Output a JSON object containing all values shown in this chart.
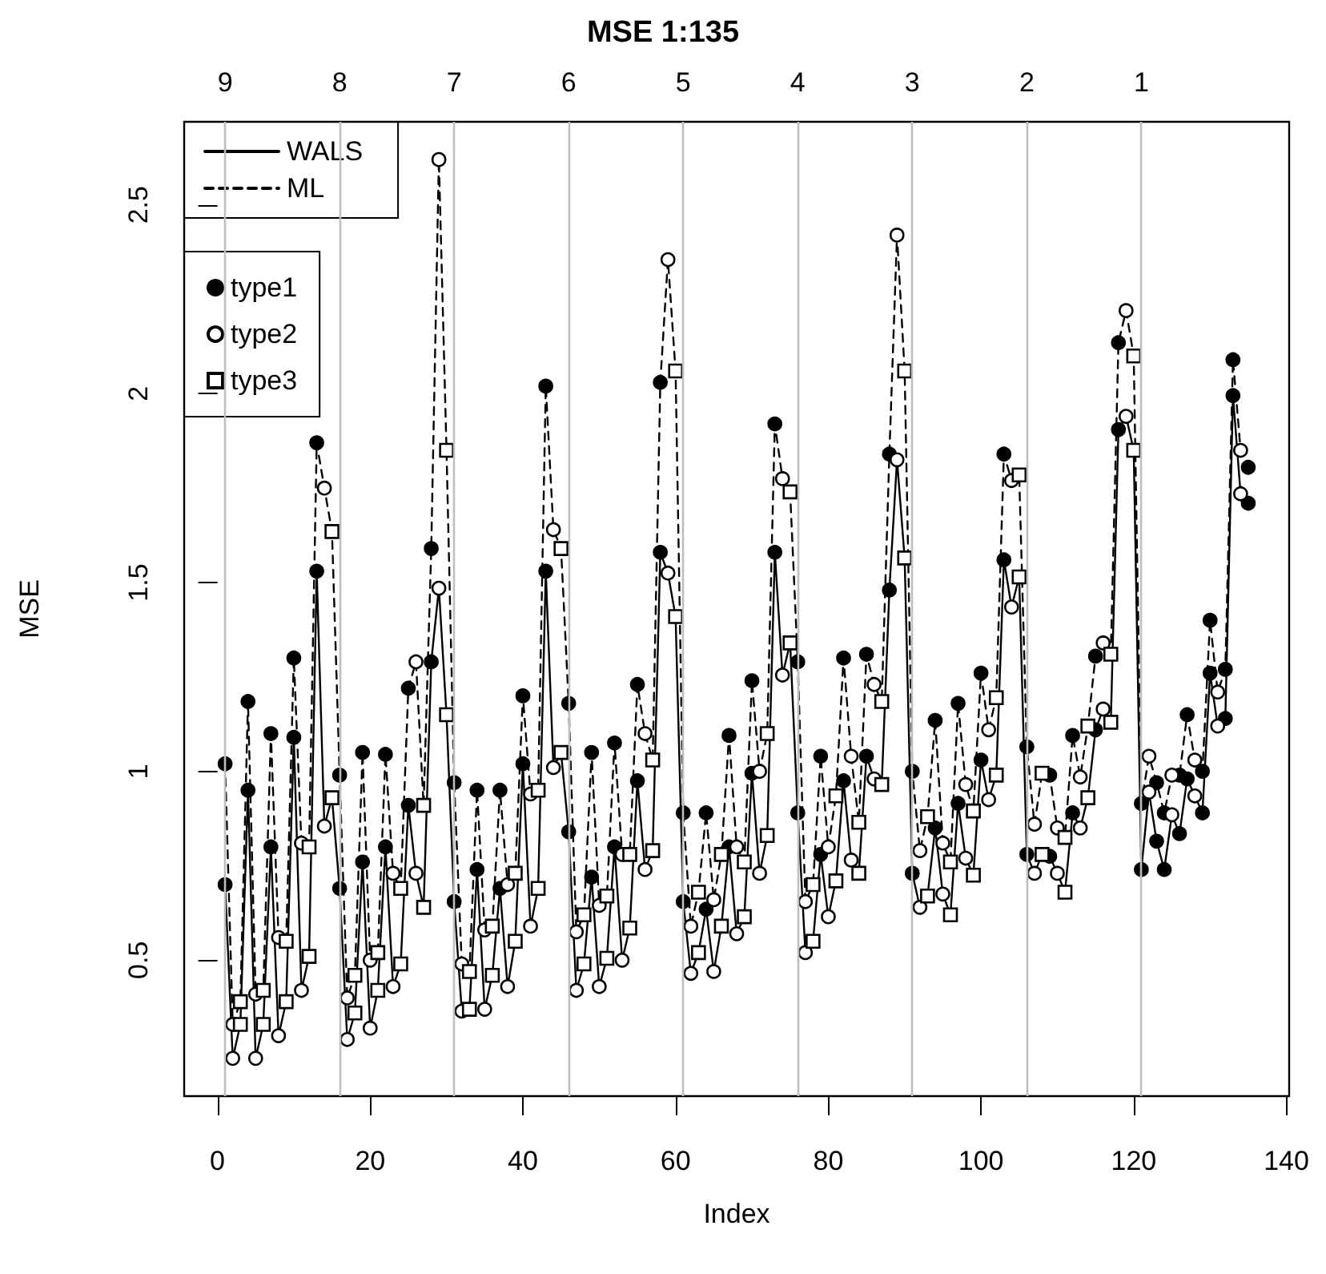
{
  "chart_data": {
    "type": "line",
    "title": "MSE 1:135",
    "xlabel": "Index",
    "ylabel": "MSE",
    "x": [
      1,
      2,
      3,
      4,
      5,
      6,
      7,
      8,
      9,
      10,
      11,
      12,
      13,
      14,
      15,
      16,
      17,
      18,
      19,
      20,
      21,
      22,
      23,
      24,
      25,
      26,
      27,
      28,
      29,
      30,
      31,
      32,
      33,
      34,
      35,
      36,
      37,
      38,
      39,
      40,
      41,
      42,
      43,
      44,
      45,
      46,
      47,
      48,
      49,
      50,
      51,
      52,
      53,
      54,
      55,
      56,
      57,
      58,
      59,
      60,
      61,
      62,
      63,
      64,
      65,
      66,
      67,
      68,
      69,
      70,
      71,
      72,
      73,
      74,
      75,
      76,
      77,
      78,
      79,
      80,
      81,
      82,
      83,
      84,
      85,
      86,
      87,
      88,
      89,
      90,
      91,
      92,
      93,
      94,
      95,
      96,
      97,
      98,
      99,
      100,
      101,
      102,
      103,
      104,
      105,
      106,
      107,
      108,
      109,
      110,
      111,
      112,
      113,
      114,
      115,
      116,
      117,
      118,
      119,
      120,
      121,
      122,
      123,
      124,
      125,
      126,
      127,
      128,
      129,
      130,
      131,
      132,
      133,
      134,
      135
    ],
    "series": [
      {
        "name": "WALS",
        "color": "#000000",
        "line_style": "solid",
        "marker": "none",
        "values": [
          0.7,
          0.24,
          0.33,
          0.95,
          0.24,
          0.33,
          0.8,
          0.3,
          0.39,
          1.09,
          0.42,
          0.51,
          1.53,
          0.855,
          0.93,
          0.69,
          0.29,
          0.36,
          0.76,
          0.32,
          0.42,
          0.8,
          0.43,
          0.49,
          0.91,
          0.73,
          0.64,
          1.29,
          1.485,
          1.15,
          0.655,
          0.365,
          0.37,
          0.74,
          0.37,
          0.46,
          0.69,
          0.43,
          0.55,
          1.02,
          0.59,
          0.69,
          1.53,
          1.01,
          1.05,
          0.84,
          0.42,
          0.49,
          0.72,
          0.43,
          0.505,
          0.8,
          0.5,
          0.585,
          0.975,
          0.74,
          0.79,
          1.58,
          1.525,
          1.41,
          0.655,
          0.465,
          0.52,
          0.635,
          0.47,
          0.59,
          0.8,
          0.57,
          0.615,
          0.995,
          0.73,
          0.83,
          1.58,
          1.255,
          1.34,
          0.89,
          0.52,
          0.55,
          0.78,
          0.615,
          0.71,
          0.975,
          0.765,
          0.73,
          1.04,
          0.98,
          0.965,
          1.48,
          1.825,
          1.565,
          0.73,
          0.64,
          0.67,
          0.85,
          0.675,
          0.62,
          0.915,
          0.77,
          0.725,
          1.03,
          0.925,
          0.99,
          1.56,
          1.435,
          1.515,
          0.78,
          0.73,
          0.78,
          0.775,
          0.73,
          0.68,
          0.89,
          0.85,
          0.93,
          1.11,
          1.165,
          1.13,
          1.905,
          1.94,
          1.85,
          0.74,
          0.945,
          0.815,
          0.74,
          0.885,
          0.835,
          0.98,
          0.935,
          0.89,
          1.26,
          1.12,
          1.14,
          1.995,
          1.735,
          1.71
        ]
      },
      {
        "name": "ML",
        "color": "#000000",
        "line_style": "dashed",
        "marker": "none",
        "values": [
          1.02,
          0.33,
          0.39,
          1.185,
          0.41,
          0.42,
          1.1,
          0.56,
          0.55,
          1.3,
          0.81,
          0.8,
          1.87,
          1.75,
          1.635,
          0.99,
          0.4,
          0.46,
          1.05,
          0.5,
          0.52,
          1.045,
          0.73,
          0.69,
          1.22,
          1.29,
          0.91,
          1.59,
          2.62,
          1.85,
          0.97,
          0.49,
          0.47,
          0.95,
          0.58,
          0.59,
          0.95,
          0.7,
          0.73,
          1.2,
          0.94,
          0.95,
          2.02,
          1.64,
          1.59,
          1.18,
          0.575,
          0.62,
          1.05,
          0.645,
          0.67,
          1.075,
          0.78,
          0.78,
          1.23,
          1.1,
          1.03,
          2.03,
          2.355,
          2.06,
          0.89,
          0.59,
          0.68,
          0.89,
          0.66,
          0.78,
          1.095,
          0.8,
          0.76,
          1.24,
          1.0,
          1.1,
          1.92,
          1.775,
          1.74,
          1.29,
          0.655,
          0.7,
          1.04,
          0.8,
          0.935,
          1.3,
          1.04,
          0.865,
          1.31,
          1.23,
          1.185,
          1.84,
          2.42,
          2.06,
          1.0,
          0.79,
          0.88,
          1.135,
          0.81,
          0.76,
          1.18,
          0.965,
          0.895,
          1.26,
          1.11,
          1.195,
          1.84,
          1.77,
          1.785,
          1.065,
          0.86,
          0.995,
          0.99,
          0.85,
          0.825,
          1.095,
          0.985,
          1.12,
          1.305,
          1.34,
          1.31,
          2.135,
          2.22,
          2.1,
          0.915,
          1.04,
          0.97,
          0.89,
          0.99,
          0.99,
          1.15,
          1.03,
          1.0,
          1.4,
          1.21,
          1.27,
          2.09,
          1.85,
          1.805
        ]
      },
      {
        "name": "type1",
        "type": "scatter",
        "color": "#000000",
        "marker": "circle",
        "x": [
          1,
          1,
          4,
          4,
          7,
          7,
          10,
          10,
          13,
          13,
          16,
          16,
          19,
          19,
          22,
          22,
          25,
          25,
          28,
          28,
          31,
          31,
          34,
          34,
          37,
          37,
          40,
          40,
          43,
          43,
          46,
          46,
          49,
          49,
          52,
          52,
          55,
          55,
          58,
          58,
          61,
          61,
          64,
          64,
          67,
          67,
          70,
          70,
          73,
          73,
          76,
          76,
          79,
          79,
          82,
          82,
          85,
          85,
          88,
          88,
          91,
          91,
          94,
          94,
          97,
          97,
          100,
          100,
          103,
          103,
          106,
          106,
          109,
          109,
          112,
          112,
          115,
          115,
          118,
          118,
          121,
          121,
          123,
          123,
          124,
          124,
          126,
          126,
          127,
          127,
          129,
          129,
          130,
          130,
          132,
          132,
          133,
          133,
          135,
          135
        ],
        "values": [
          1.02,
          0.7,
          1.185,
          0.95,
          1.1,
          0.8,
          1.3,
          1.09,
          1.87,
          1.53,
          0.99,
          0.69,
          1.05,
          0.76,
          1.045,
          0.8,
          1.22,
          0.91,
          1.59,
          1.29,
          0.97,
          0.655,
          0.95,
          0.74,
          0.95,
          0.69,
          1.2,
          1.02,
          2.02,
          1.53,
          1.18,
          0.84,
          1.05,
          0.72,
          1.075,
          0.8,
          1.23,
          0.975,
          2.03,
          1.58,
          0.89,
          0.655,
          0.89,
          0.635,
          1.095,
          0.8,
          1.24,
          0.995,
          1.92,
          1.58,
          1.29,
          0.89,
          1.04,
          0.78,
          1.3,
          0.975,
          1.31,
          1.04,
          1.84,
          1.48,
          1.0,
          0.73,
          1.135,
          0.85,
          1.18,
          0.915,
          1.26,
          1.03,
          1.84,
          1.56,
          1.065,
          0.78,
          0.99,
          0.775,
          1.095,
          0.89,
          1.305,
          1.11,
          2.135,
          1.905,
          0.915,
          0.74,
          0.97,
          0.815,
          0.89,
          0.74,
          0.99,
          0.835,
          1.15,
          0.98,
          1.0,
          0.89,
          1.4,
          1.26,
          1.27,
          1.14,
          2.09,
          1.995,
          1.805,
          1.71
        ]
      },
      {
        "name": "type2",
        "type": "scatter",
        "color": "#ffffff",
        "marker": "circle",
        "x": [
          2,
          2,
          5,
          5,
          8,
          8,
          11,
          11,
          14,
          14,
          17,
          17,
          20,
          20,
          23,
          23,
          26,
          26,
          29,
          29,
          32,
          32,
          35,
          35,
          38,
          38,
          41,
          41,
          44,
          44,
          47,
          47,
          50,
          50,
          53,
          53,
          56,
          56,
          59,
          59,
          62,
          62,
          65,
          65,
          68,
          68,
          71,
          71,
          74,
          74,
          77,
          77,
          80,
          80,
          83,
          83,
          86,
          86,
          89,
          89,
          92,
          92,
          95,
          95,
          98,
          98,
          101,
          101,
          104,
          104,
          107,
          107,
          110,
          110,
          113,
          113,
          116,
          116,
          119,
          119,
          122,
          122,
          125,
          125,
          128,
          128,
          131,
          131,
          134,
          134
        ],
        "values": [
          0.33,
          0.24,
          0.41,
          0.24,
          0.56,
          0.3,
          0.81,
          0.42,
          1.75,
          0.855,
          0.4,
          0.29,
          0.5,
          0.32,
          0.73,
          0.43,
          1.29,
          0.73,
          2.62,
          1.485,
          0.49,
          0.365,
          0.58,
          0.37,
          0.7,
          0.43,
          0.94,
          0.59,
          1.64,
          1.01,
          0.575,
          0.42,
          0.645,
          0.43,
          0.78,
          0.5,
          1.1,
          0.74,
          2.355,
          1.525,
          0.59,
          0.465,
          0.66,
          0.47,
          0.8,
          0.57,
          1.0,
          0.73,
          1.775,
          1.255,
          0.655,
          0.52,
          0.8,
          0.615,
          1.04,
          0.765,
          1.23,
          0.98,
          2.42,
          1.825,
          0.79,
          0.64,
          0.81,
          0.675,
          0.965,
          0.77,
          1.11,
          0.925,
          1.77,
          1.435,
          0.86,
          0.73,
          0.85,
          0.73,
          0.985,
          0.85,
          1.34,
          1.165,
          2.22,
          1.94,
          1.04,
          0.945,
          0.99,
          0.885,
          1.03,
          0.935,
          1.21,
          1.12,
          1.85,
          1.735
        ]
      },
      {
        "name": "type3",
        "type": "scatter",
        "color": "#ffffff",
        "marker": "square",
        "x": [
          3,
          3,
          6,
          6,
          9,
          9,
          12,
          12,
          15,
          15,
          18,
          18,
          21,
          21,
          24,
          24,
          27,
          27,
          30,
          30,
          33,
          33,
          36,
          36,
          39,
          39,
          42,
          42,
          45,
          45,
          48,
          48,
          51,
          51,
          54,
          54,
          57,
          57,
          60,
          60,
          63,
          63,
          66,
          66,
          69,
          69,
          72,
          72,
          75,
          75,
          78,
          78,
          81,
          81,
          84,
          84,
          87,
          87,
          90,
          90,
          93,
          93,
          96,
          96,
          99,
          99,
          102,
          102,
          105,
          105,
          108,
          108,
          111,
          111,
          114,
          114,
          117,
          117,
          120,
          120
        ],
        "values": [
          0.39,
          0.33,
          0.42,
          0.33,
          0.55,
          0.39,
          0.8,
          0.51,
          1.635,
          0.93,
          0.46,
          0.36,
          0.52,
          0.42,
          0.69,
          0.49,
          0.91,
          0.64,
          1.85,
          1.15,
          0.47,
          0.37,
          0.59,
          0.46,
          0.73,
          0.55,
          0.95,
          0.69,
          1.59,
          1.05,
          0.62,
          0.49,
          0.67,
          0.505,
          0.78,
          0.585,
          1.03,
          0.79,
          2.06,
          1.41,
          0.68,
          0.52,
          0.78,
          0.59,
          0.76,
          0.615,
          1.1,
          0.83,
          1.74,
          1.34,
          0.7,
          0.55,
          0.935,
          0.71,
          0.865,
          0.73,
          1.185,
          0.965,
          2.06,
          1.565,
          0.88,
          0.67,
          0.76,
          0.62,
          0.895,
          0.725,
          1.195,
          0.99,
          1.785,
          1.515,
          0.995,
          0.78,
          0.825,
          0.68,
          1.12,
          0.93,
          1.31,
          1.13,
          2.1,
          1.85
        ]
      }
    ],
    "xlim": [
      -4.36,
      140.36
    ],
    "xticks": [
      0,
      20,
      40,
      60,
      80,
      100,
      120,
      140
    ],
    "ylim": [
      0.14,
      2.72
    ],
    "yticks": [
      0.5,
      1.0,
      1.5,
      2.0,
      2.5
    ],
    "ref_lines": [
      {
        "axis": "x",
        "value": 1,
        "color": "#bebebe"
      },
      {
        "axis": "x",
        "value": 16,
        "color": "#bebebe"
      },
      {
        "axis": "x",
        "value": 31,
        "color": "#bebebe"
      },
      {
        "axis": "x",
        "value": 46,
        "color": "#bebebe"
      },
      {
        "axis": "x",
        "value": 61,
        "color": "#bebebe"
      },
      {
        "axis": "x",
        "value": 76,
        "color": "#bebebe"
      },
      {
        "axis": "x",
        "value": 91,
        "color": "#bebebe"
      },
      {
        "axis": "x",
        "value": 106,
        "color": "#bebebe"
      },
      {
        "axis": "x",
        "value": 121,
        "color": "#bebebe"
      }
    ],
    "annotations": [
      "9",
      "8",
      "7",
      "6",
      "5",
      "4",
      "3",
      "2",
      "1"
    ],
    "legend": "top left"
  }
}
